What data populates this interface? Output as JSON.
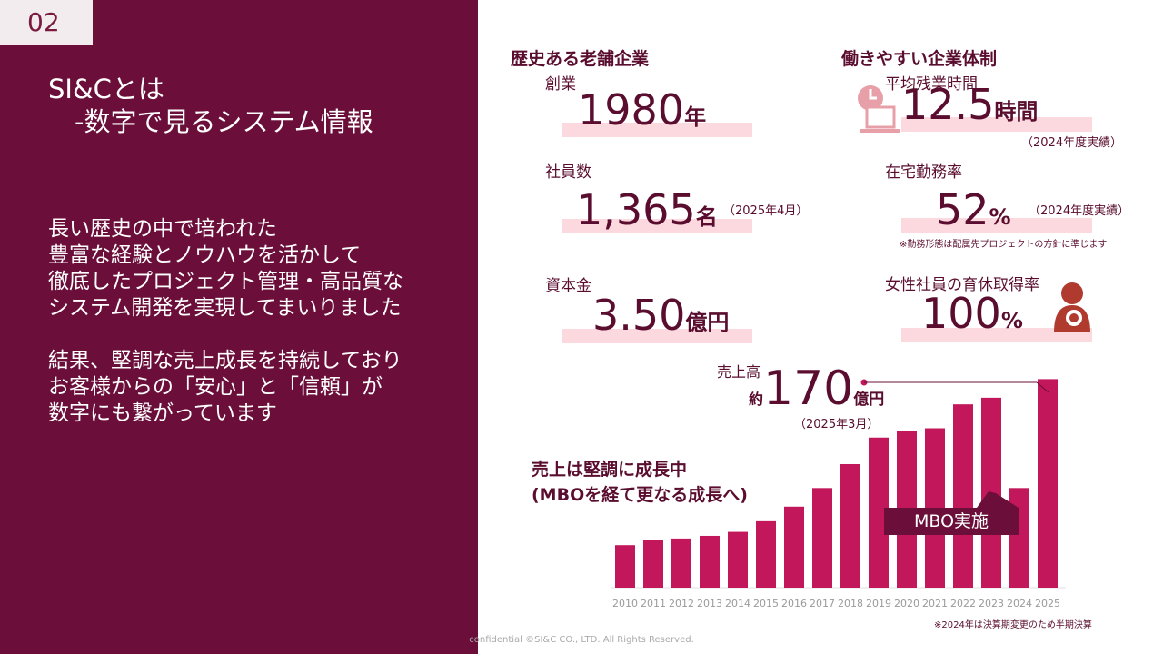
{
  "page_number": "02",
  "title_line1": "SI&Cとは",
  "title_line2": "　-数字で見るシステム情報",
  "body_lines": [
    "長い歴史の中で培われた",
    "豊富な経験とノウハウを活かして",
    "徹底したプロジェクト管理・高品質な",
    "システム開発を実現してまいりました",
    "",
    "結果、堅調な売上成長を持続しており",
    "お客様からの「安心」と「信頼」が",
    "数字にも繋がっています"
  ],
  "section_history": "歴史ある老舗企業",
  "section_workstyle": "働きやすい企業体制",
  "stats": {
    "founded": {
      "label": "創業",
      "value": "1980",
      "unit": "年"
    },
    "employees": {
      "label": "社員数",
      "value": "1,365",
      "unit": "名",
      "note": "（2025年4月）"
    },
    "capital": {
      "label": "資本金",
      "value": "3.50",
      "unit": "億円"
    },
    "overtime": {
      "label": "平均残業時間",
      "value": "12.5",
      "unit": "時間",
      "note": "（2024年度実績）"
    },
    "remote": {
      "label": "在宅勤務率",
      "value": "52",
      "unit": "%",
      "note": "（2024年度実績）",
      "footnote": "※勤務形態は配属先プロジェクトの方針に準じます"
    },
    "childcare": {
      "label": "女性社員の育休取得率",
      "value": "100",
      "unit": "%"
    }
  },
  "sales": {
    "label": "売上高",
    "prefix": "約",
    "value": "170",
    "unit": "億円",
    "date": "（2025年3月）"
  },
  "chart_title_lines": [
    "売上は堅調に成長中",
    "(MBOを経て更なる成長へ)"
  ],
  "mbo_label": "MBO実施",
  "chart_note": "※2024年は決算期変更のため半期決算",
  "footer": "confidential ©SI&C CO., LTD. All Rights Reserved.",
  "icons": [
    "clock-computer-icon",
    "mother-child-icon"
  ],
  "colors": {
    "brand": "#6b0f3a",
    "bar": "#c2185b",
    "highlight": "#fbd9df",
    "icon": "#e8a0a8"
  },
  "chart_data": {
    "type": "bar",
    "categories": [
      "2010",
      "2011",
      "2012",
      "2013",
      "2014",
      "2015",
      "2016",
      "2017",
      "2018",
      "2019",
      "2020",
      "2021",
      "2022",
      "2023",
      "2024",
      "2025"
    ],
    "values": [
      32,
      36,
      37,
      39,
      42,
      50,
      61,
      75,
      93,
      113,
      118,
      120,
      138,
      143,
      75,
      157
    ],
    "ylim": [
      0,
      160
    ],
    "xlabel": "",
    "ylabel": "",
    "title": ""
  }
}
